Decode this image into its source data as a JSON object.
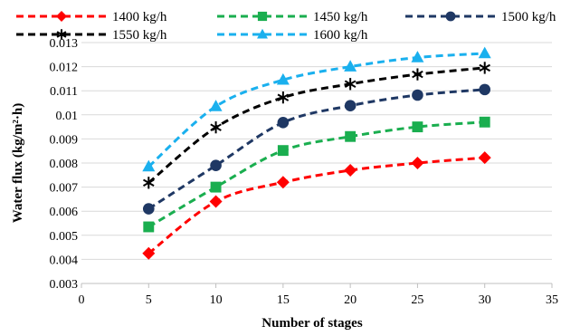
{
  "chart_data": {
    "type": "line",
    "title": "",
    "xlabel": "Number of stages",
    "ylabel": "Water flux (kg/m²·h)",
    "xlim": [
      0,
      35
    ],
    "ylim": [
      0.003,
      0.013
    ],
    "x_ticks": [
      "0",
      "5",
      "10",
      "15",
      "20",
      "25",
      "30",
      "35"
    ],
    "y_ticks": [
      "0.003",
      "0.004",
      "0.005",
      "0.006",
      "0.007",
      "0.008",
      "0.009",
      "0.01",
      "0.011",
      "0.012",
      "0.013"
    ],
    "grid": "horizontal",
    "legend_position": "top",
    "x": [
      5,
      10,
      15,
      20,
      25,
      30
    ],
    "series": [
      {
        "name": "1400 kg/h",
        "color": "#ff0000",
        "marker": "diamond",
        "values": [
          0.00425,
          0.0064,
          0.0072,
          0.0077,
          0.008,
          0.00822
        ]
      },
      {
        "name": "1450 kg/h",
        "color": "#1aae4f",
        "marker": "square",
        "values": [
          0.00535,
          0.007,
          0.00852,
          0.0091,
          0.0095,
          0.0097
        ]
      },
      {
        "name": "1500 kg/h",
        "color": "#1f3864",
        "marker": "circle",
        "values": [
          0.0061,
          0.0079,
          0.00968,
          0.01038,
          0.01082,
          0.01105
        ]
      },
      {
        "name": "1550 kg/h",
        "color": "#000000",
        "marker": "asterisk",
        "values": [
          0.00718,
          0.00948,
          0.01072,
          0.01128,
          0.01168,
          0.01195
        ]
      },
      {
        "name": "1600 kg/h",
        "color": "#1ab0ee",
        "marker": "triangle",
        "values": [
          0.00785,
          0.01035,
          0.01145,
          0.012,
          0.01238,
          0.01255
        ]
      }
    ]
  }
}
